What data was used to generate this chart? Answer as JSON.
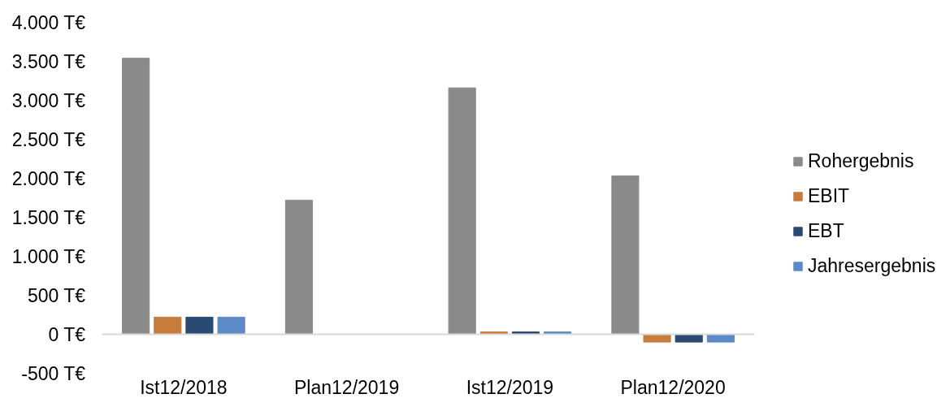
{
  "chart_data": {
    "type": "bar",
    "categories": [
      "Ist12/2018",
      "Plan12/2019",
      "Ist12/2019",
      "Plan12/2020"
    ],
    "series": [
      {
        "name": "Rohergebnis",
        "color": "#8a8a8a",
        "values": [
          3540,
          1720,
          3160,
          2030
        ]
      },
      {
        "name": "EBIT",
        "color": "#c67c3c",
        "values": [
          220,
          null,
          30,
          -100
        ]
      },
      {
        "name": "EBT",
        "color": "#2b4a73",
        "values": [
          220,
          null,
          30,
          -100
        ]
      },
      {
        "name": "Jahresergebnis",
        "color": "#5b8ac6",
        "values": [
          220,
          null,
          30,
          -100
        ]
      }
    ],
    "ylim": [
      -500,
      4000
    ],
    "yticks": [
      {
        "value": -500,
        "label": "-500 T€"
      },
      {
        "value": 0,
        "label": "0 T€"
      },
      {
        "value": 500,
        "label": "500 T€"
      },
      {
        "value": 1000,
        "label": "1.000 T€"
      },
      {
        "value": 1500,
        "label": "1.500 T€"
      },
      {
        "value": 2000,
        "label": "2.000 T€"
      },
      {
        "value": 2500,
        "label": "2.500 T€"
      },
      {
        "value": 3000,
        "label": "3.000 T€"
      },
      {
        "value": 3500,
        "label": "3.500 T€"
      },
      {
        "value": 4000,
        "label": "4.000 T€"
      }
    ],
    "grid": false,
    "legend": "right"
  }
}
